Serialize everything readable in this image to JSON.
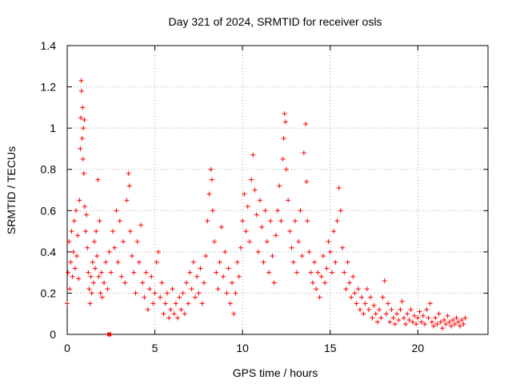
{
  "chart_data": {
    "type": "scatter",
    "title": "Day 321 of 2024, SRMTID for receiver osls",
    "xlabel": "GPS time / hours",
    "ylabel": "SRMTID / TECUs",
    "xlim": [
      0,
      24
    ],
    "ylim": [
      0,
      1.4
    ],
    "xticks": [
      0,
      5,
      10,
      15,
      20
    ],
    "xtick_labels": [
      "0",
      "5",
      "10",
      "15",
      "20"
    ],
    "yticks": [
      0,
      0.2,
      0.4,
      0.6,
      0.8,
      1.0,
      1.2,
      1.4
    ],
    "ytick_labels": [
      "0",
      "0.2",
      "0.4",
      "0.6",
      "0.8",
      "1",
      "1.2",
      "1.4"
    ],
    "grid": true,
    "marker": "+",
    "color": "#ff0000",
    "outlier_marker": {
      "x": 2.4,
      "y": 0.0,
      "shape": "square"
    },
    "series": [
      {
        "name": "SRMTID",
        "points": [
          [
            0.0,
            0.15
          ],
          [
            0.05,
            0.3
          ],
          [
            0.1,
            0.45
          ],
          [
            0.15,
            0.22
          ],
          [
            0.2,
            0.35
          ],
          [
            0.25,
            0.5
          ],
          [
            0.3,
            0.28
          ],
          [
            0.35,
            0.4
          ],
          [
            0.4,
            0.55
          ],
          [
            0.45,
            0.32
          ],
          [
            0.5,
            0.6
          ],
          [
            0.55,
            0.38
          ],
          [
            0.6,
            0.48
          ],
          [
            0.65,
            0.27
          ],
          [
            0.7,
            0.65
          ],
          [
            0.75,
            0.9
          ],
          [
            0.78,
            1.05
          ],
          [
            0.8,
            1.23
          ],
          [
            0.82,
            1.18
          ],
          [
            0.85,
            0.95
          ],
          [
            0.88,
            1.1
          ],
          [
            0.9,
            0.85
          ],
          [
            0.92,
            1.0
          ],
          [
            0.95,
            0.78
          ],
          [
            0.98,
            1.04
          ],
          [
            1.0,
            0.62
          ],
          [
            1.05,
            0.5
          ],
          [
            1.1,
            0.58
          ],
          [
            1.15,
            0.42
          ],
          [
            1.2,
            0.3
          ],
          [
            1.25,
            0.22
          ],
          [
            1.3,
            0.15
          ],
          [
            1.35,
            0.28
          ],
          [
            1.4,
            0.2
          ],
          [
            1.45,
            0.35
          ],
          [
            1.5,
            0.25
          ],
          [
            1.55,
            0.45
          ],
          [
            1.6,
            0.32
          ],
          [
            1.65,
            0.5
          ],
          [
            1.7,
            0.38
          ],
          [
            1.75,
            0.75
          ],
          [
            1.8,
            0.28
          ],
          [
            1.85,
            0.55
          ],
          [
            1.9,
            0.2
          ],
          [
            1.95,
            0.3
          ],
          [
            2.0,
            0.18
          ],
          [
            2.1,
            0.25
          ],
          [
            2.2,
            0.35
          ],
          [
            2.3,
            0.22
          ],
          [
            2.4,
            0.4
          ],
          [
            2.5,
            0.3
          ],
          [
            2.6,
            0.5
          ],
          [
            2.7,
            0.42
          ],
          [
            2.8,
            0.6
          ],
          [
            2.9,
            0.35
          ],
          [
            3.0,
            0.55
          ],
          [
            3.1,
            0.28
          ],
          [
            3.2,
            0.45
          ],
          [
            3.3,
            0.25
          ],
          [
            3.4,
            0.65
          ],
          [
            3.5,
            0.78
          ],
          [
            3.55,
            0.72
          ],
          [
            3.6,
            0.5
          ],
          [
            3.7,
            0.38
          ],
          [
            3.8,
            0.3
          ],
          [
            3.9,
            0.2
          ],
          [
            4.0,
            0.45
          ],
          [
            4.1,
            0.35
          ],
          [
            4.2,
            0.53
          ],
          [
            4.3,
            0.25
          ],
          [
            4.4,
            0.18
          ],
          [
            4.5,
            0.3
          ],
          [
            4.6,
            0.12
          ],
          [
            4.7,
            0.22
          ],
          [
            4.8,
            0.28
          ],
          [
            4.9,
            0.15
          ],
          [
            5.0,
            0.2
          ],
          [
            5.1,
            0.35
          ],
          [
            5.2,
            0.4
          ],
          [
            5.3,
            0.18
          ],
          [
            5.4,
            0.25
          ],
          [
            5.5,
            0.1
          ],
          [
            5.6,
            0.15
          ],
          [
            5.7,
            0.2
          ],
          [
            5.8,
            0.08
          ],
          [
            5.9,
            0.12
          ],
          [
            6.0,
            0.22
          ],
          [
            6.1,
            0.1
          ],
          [
            6.2,
            0.15
          ],
          [
            6.3,
            0.08
          ],
          [
            6.4,
            0.18
          ],
          [
            6.5,
            0.12
          ],
          [
            6.6,
            0.2
          ],
          [
            6.7,
            0.1
          ],
          [
            6.8,
            0.25
          ],
          [
            6.9,
            0.15
          ],
          [
            7.0,
            0.3
          ],
          [
            7.1,
            0.22
          ],
          [
            7.2,
            0.35
          ],
          [
            7.3,
            0.18
          ],
          [
            7.4,
            0.28
          ],
          [
            7.5,
            0.2
          ],
          [
            7.6,
            0.32
          ],
          [
            7.7,
            0.15
          ],
          [
            7.8,
            0.25
          ],
          [
            7.9,
            0.38
          ],
          [
            8.0,
            0.55
          ],
          [
            8.1,
            0.68
          ],
          [
            8.2,
            0.8
          ],
          [
            8.25,
            0.75
          ],
          [
            8.3,
            0.6
          ],
          [
            8.4,
            0.45
          ],
          [
            8.5,
            0.3
          ],
          [
            8.6,
            0.22
          ],
          [
            8.7,
            0.35
          ],
          [
            8.8,
            0.52
          ],
          [
            8.9,
            0.28
          ],
          [
            9.0,
            0.4
          ],
          [
            9.1,
            0.2
          ],
          [
            9.2,
            0.32
          ],
          [
            9.3,
            0.15
          ],
          [
            9.4,
            0.25
          ],
          [
            9.5,
            0.1
          ],
          [
            9.6,
            0.2
          ],
          [
            9.7,
            0.35
          ],
          [
            9.8,
            0.28
          ],
          [
            9.9,
            0.42
          ],
          [
            10.0,
            0.55
          ],
          [
            10.1,
            0.68
          ],
          [
            10.2,
            0.5
          ],
          [
            10.3,
            0.62
          ],
          [
            10.4,
            0.45
          ],
          [
            10.5,
            0.75
          ],
          [
            10.6,
            0.87
          ],
          [
            10.7,
            0.7
          ],
          [
            10.8,
            0.58
          ],
          [
            10.9,
            0.4
          ],
          [
            11.0,
            0.65
          ],
          [
            11.1,
            0.52
          ],
          [
            11.2,
            0.35
          ],
          [
            11.3,
            0.6
          ],
          [
            11.4,
            0.45
          ],
          [
            11.5,
            0.3
          ],
          [
            11.6,
            0.55
          ],
          [
            11.7,
            0.38
          ],
          [
            11.8,
            0.25
          ],
          [
            11.9,
            0.48
          ],
          [
            12.0,
            0.6
          ],
          [
            12.1,
            0.72
          ],
          [
            12.2,
            0.55
          ],
          [
            12.3,
            0.85
          ],
          [
            12.35,
            0.95
          ],
          [
            12.4,
            1.07
          ],
          [
            12.45,
            1.03
          ],
          [
            12.5,
            0.8
          ],
          [
            12.6,
            0.65
          ],
          [
            12.7,
            0.5
          ],
          [
            12.8,
            0.42
          ],
          [
            12.9,
            0.35
          ],
          [
            13.0,
            0.55
          ],
          [
            13.1,
            0.3
          ],
          [
            13.2,
            0.45
          ],
          [
            13.3,
            0.6
          ],
          [
            13.4,
            0.38
          ],
          [
            13.5,
            0.88
          ],
          [
            13.6,
            1.02
          ],
          [
            13.65,
            0.74
          ],
          [
            13.7,
            0.55
          ],
          [
            13.8,
            0.4
          ],
          [
            13.9,
            0.3
          ],
          [
            14.0,
            0.25
          ],
          [
            14.1,
            0.35
          ],
          [
            14.2,
            0.22
          ],
          [
            14.3,
            0.3
          ],
          [
            14.4,
            0.18
          ],
          [
            14.5,
            0.28
          ],
          [
            14.6,
            0.38
          ],
          [
            14.7,
            0.25
          ],
          [
            14.8,
            0.32
          ],
          [
            14.9,
            0.45
          ],
          [
            15.0,
            0.4
          ],
          [
            15.1,
            0.3
          ],
          [
            15.2,
            0.5
          ],
          [
            15.3,
            0.35
          ],
          [
            15.4,
            0.55
          ],
          [
            15.5,
            0.71
          ],
          [
            15.6,
            0.6
          ],
          [
            15.7,
            0.42
          ],
          [
            15.8,
            0.3
          ],
          [
            15.9,
            0.22
          ],
          [
            16.0,
            0.35
          ],
          [
            16.1,
            0.25
          ],
          [
            16.2,
            0.18
          ],
          [
            16.3,
            0.28
          ],
          [
            16.4,
            0.2
          ],
          [
            16.5,
            0.15
          ],
          [
            16.6,
            0.22
          ],
          [
            16.7,
            0.12
          ],
          [
            16.8,
            0.18
          ],
          [
            16.9,
            0.1
          ],
          [
            17.0,
            0.15
          ],
          [
            17.1,
            0.22
          ],
          [
            17.2,
            0.12
          ],
          [
            17.3,
            0.18
          ],
          [
            17.4,
            0.08
          ],
          [
            17.5,
            0.14
          ],
          [
            17.6,
            0.1
          ],
          [
            17.7,
            0.06
          ],
          [
            17.8,
            0.12
          ],
          [
            17.9,
            0.08
          ],
          [
            18.0,
            0.18
          ],
          [
            18.1,
            0.26
          ],
          [
            18.2,
            0.1
          ],
          [
            18.3,
            0.15
          ],
          [
            18.4,
            0.06
          ],
          [
            18.5,
            0.12
          ],
          [
            18.6,
            0.08
          ],
          [
            18.7,
            0.05
          ],
          [
            18.8,
            0.1
          ],
          [
            18.9,
            0.07
          ],
          [
            19.0,
            0.12
          ],
          [
            19.1,
            0.16
          ],
          [
            19.2,
            0.08
          ],
          [
            19.3,
            0.05
          ],
          [
            19.4,
            0.1
          ],
          [
            19.5,
            0.07
          ],
          [
            19.6,
            0.12
          ],
          [
            19.7,
            0.06
          ],
          [
            19.8,
            0.09
          ],
          [
            19.9,
            0.05
          ],
          [
            20.0,
            0.08
          ],
          [
            20.1,
            0.11
          ],
          [
            20.2,
            0.06
          ],
          [
            20.3,
            0.09
          ],
          [
            20.4,
            0.05
          ],
          [
            20.5,
            0.12
          ],
          [
            20.6,
            0.08
          ],
          [
            20.7,
            0.15
          ],
          [
            20.8,
            0.06
          ],
          [
            20.9,
            0.04
          ],
          [
            21.0,
            0.08
          ],
          [
            21.1,
            0.05
          ],
          [
            21.2,
            0.1
          ],
          [
            21.3,
            0.06
          ],
          [
            21.4,
            0.03
          ],
          [
            21.5,
            0.07
          ],
          [
            21.6,
            0.05
          ],
          [
            21.7,
            0.09
          ],
          [
            21.8,
            0.06
          ],
          [
            21.9,
            0.04
          ],
          [
            22.0,
            0.07
          ],
          [
            22.1,
            0.05
          ],
          [
            22.2,
            0.08
          ],
          [
            22.3,
            0.06
          ],
          [
            22.4,
            0.04
          ],
          [
            22.5,
            0.07
          ],
          [
            22.6,
            0.05
          ],
          [
            22.7,
            0.08
          ]
        ]
      }
    ]
  }
}
